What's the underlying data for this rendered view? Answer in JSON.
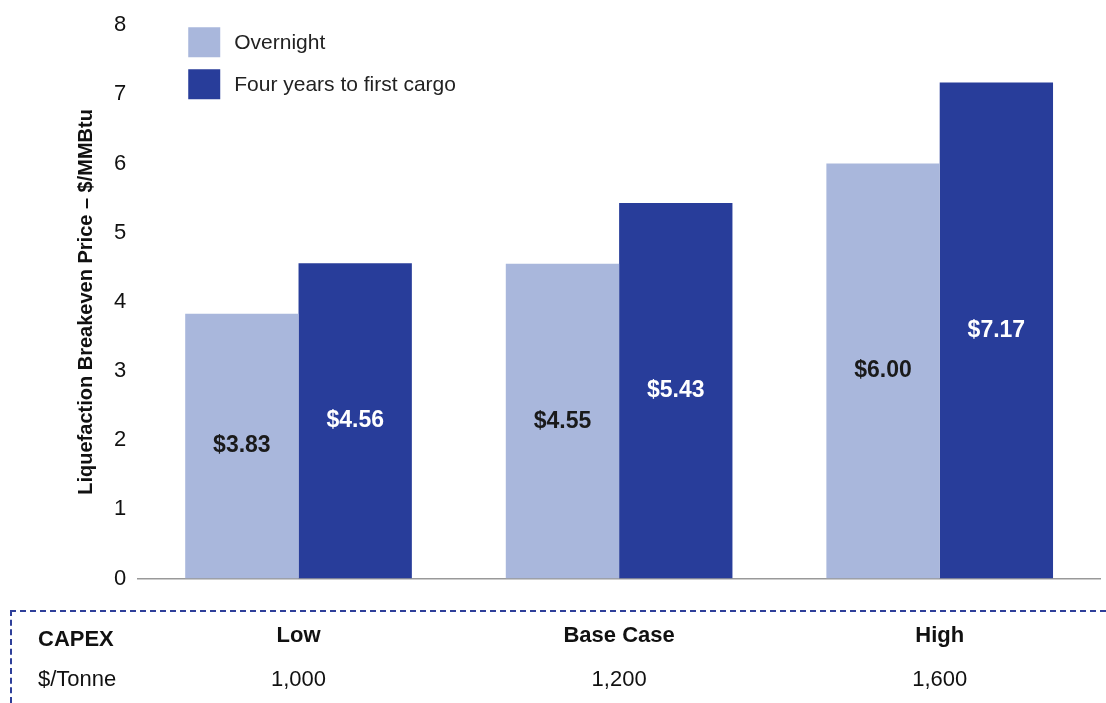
{
  "chart_data": {
    "type": "bar",
    "ylabel": "Liquefaction Breakeven Price – $/MMBtu",
    "categories": [
      "Low",
      "Base Case",
      "High"
    ],
    "series": [
      {
        "name": "Overnight",
        "color": "#a9b7dc",
        "values": [
          3.83,
          4.55,
          6.0
        ],
        "value_labels": [
          "$3.83",
          "$4.55",
          "$6.00"
        ]
      },
      {
        "name": "Four years to first cargo",
        "color": "#283d9a",
        "values": [
          4.56,
          5.43,
          7.17
        ],
        "value_labels": [
          "$4.56",
          "$5.43",
          "$7.17"
        ]
      }
    ],
    "ylim": [
      0,
      8
    ],
    "yticks": [
      0,
      1,
      2,
      3,
      4,
      5,
      6,
      7,
      8
    ],
    "grid": false,
    "legend": "top left",
    "annotations": [
      "CAPEX",
      "$/Tonne",
      "1,000",
      "1,200",
      "1,600"
    ]
  }
}
